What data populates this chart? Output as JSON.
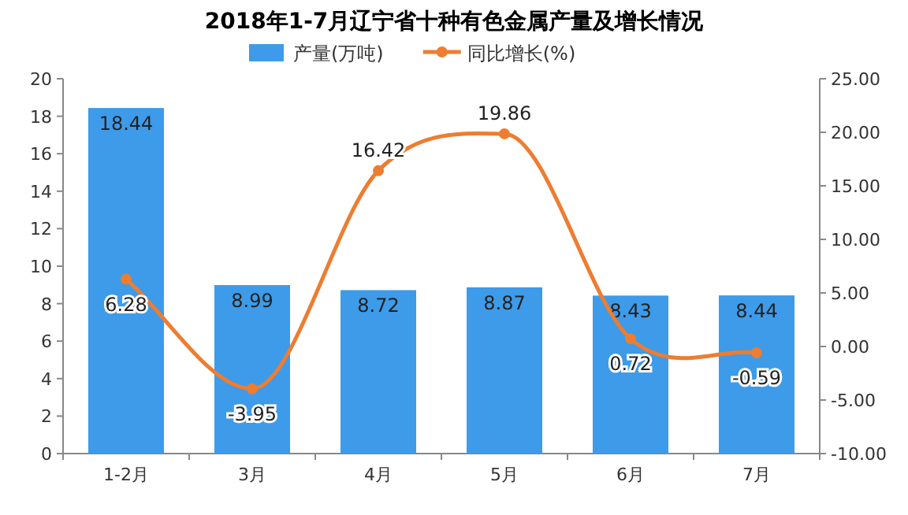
{
  "chart_data": {
    "type": "bar",
    "title": "2018年1-7月辽宁省十种有色金属产量及增长情况",
    "categories": [
      "1-2月",
      "3月",
      "4月",
      "5月",
      "6月",
      "7月"
    ],
    "series": [
      {
        "name": "产量(万吨)",
        "color": "#3d9be9",
        "values": [
          18.44,
          8.99,
          8.72,
          8.87,
          8.43,
          8.44
        ]
      },
      {
        "name": "同比增长(%)",
        "type": "line",
        "axis": "y2",
        "color": "#ed7d31",
        "marker": "circle",
        "values": [
          6.28,
          -3.95,
          16.42,
          19.86,
          0.72,
          -0.59
        ]
      }
    ],
    "ylim": [
      0,
      20
    ],
    "yticks": [
      0,
      2,
      4,
      6,
      8,
      10,
      12,
      14,
      16,
      18,
      20
    ],
    "y2lim": [
      -10,
      25
    ],
    "y2ticks": [
      {
        "value": -10,
        "label": "-10.00"
      },
      {
        "value": -5,
        "label": "-5.00"
      },
      {
        "value": 0,
        "label": "0.00"
      },
      {
        "value": 5,
        "label": "5.00"
      },
      {
        "value": 10,
        "label": "10.00"
      },
      {
        "value": 15,
        "label": "15.00"
      },
      {
        "value": 20,
        "label": "20.00"
      },
      {
        "value": 25,
        "label": "25.00"
      }
    ],
    "data_labels": true,
    "legend": "top",
    "grid": false
  }
}
